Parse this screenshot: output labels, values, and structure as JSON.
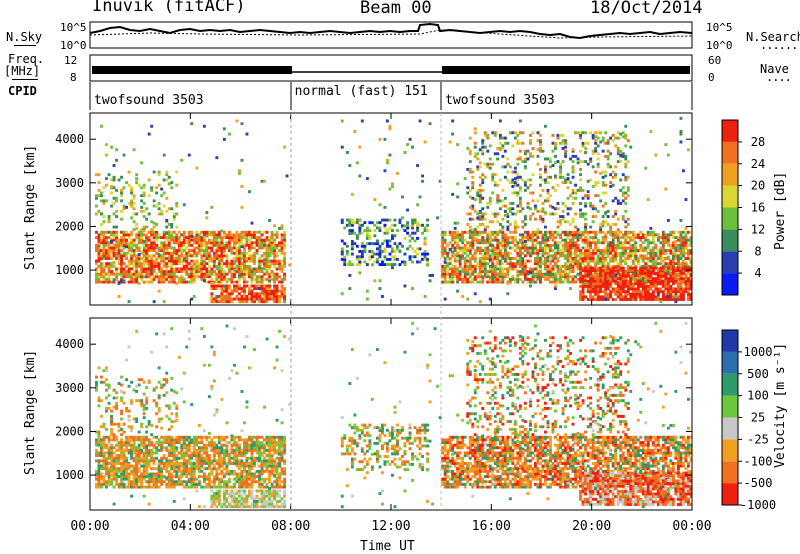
{
  "header": {
    "station": "Inuvik (fitACF)",
    "beam": "Beam 00",
    "date": "18/Oct/2014"
  },
  "side_labels": {
    "nsky": "N.Sky",
    "freq": "Freq.",
    "mhz": "[MHz]",
    "cpid": "CPID",
    "nsearch": "N.Search",
    "nave": "Nave"
  },
  "top_panels": {
    "noise_ticks_left": [
      "10^5",
      "10^0"
    ],
    "noise_ticks_right": [
      "10^5",
      "10^0"
    ],
    "freq_ticks_left": [
      "12",
      "8"
    ],
    "nave_ticks_right": [
      "60",
      "0"
    ]
  },
  "cpid_segments": [
    {
      "label": "twofsound 3503",
      "start_hour": 0
    },
    {
      "label": "normal (fast) 151",
      "start_hour": 8
    },
    {
      "label": "twofsound 3503",
      "start_hour": 14
    }
  ],
  "colors": {
    "power_scale": [
      "#0a1cf0",
      "#2d3fb0",
      "#3a8c5a",
      "#6cbf3a",
      "#d8d830",
      "#f0a020",
      "#f07020",
      "#ee2010"
    ],
    "velocity_scale": [
      "#1d3aa8",
      "#2b6fae",
      "#2f9a6a",
      "#6cc83a",
      "#c8c8c8",
      "#f0a020",
      "#f07020",
      "#ee2010"
    ]
  },
  "chart_data": [
    {
      "type": "heatmap",
      "panel": "power",
      "ylabel": "Slant Range [km]",
      "yticks": [
        "1000",
        "2000",
        "3000",
        "4000"
      ],
      "ylim": [
        200,
        4600
      ],
      "xlim": [
        0,
        24
      ],
      "colorbar_label": "Power [dB]",
      "colorbar_ticks": [
        "4",
        "8",
        "12",
        "16",
        "20",
        "24",
        "28"
      ],
      "colorbar_range": [
        0,
        32
      ]
    },
    {
      "type": "heatmap",
      "panel": "velocity",
      "ylabel": "Slant Range [km]",
      "yticks": [
        "1000",
        "2000",
        "3000",
        "4000"
      ],
      "ylim": [
        200,
        4600
      ],
      "xlim": [
        0,
        24
      ],
      "colorbar_label": "Velocity [m s⁻¹]",
      "colorbar_ticks": [
        "1000",
        "500",
        "100",
        "25",
        "-25",
        "-100",
        "-500",
        "-1000"
      ],
      "xticks": [
        "00:00",
        "04:00",
        "08:00",
        "12:00",
        "16:00",
        "20:00",
        "00:00"
      ],
      "xlabel": "Time UT"
    }
  ]
}
